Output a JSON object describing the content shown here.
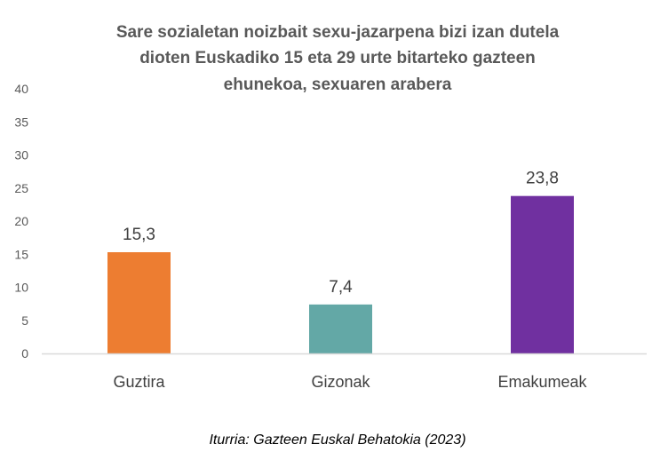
{
  "chart_data": {
    "type": "bar",
    "title_lines": [
      "Sare sozialetan noizbait sexu-jazarpena bizi izan dutela",
      "dioten Euskadiko 15 eta 29 urte bitarteko gazteen",
      "ehunekoa, sexuaren arabera"
    ],
    "categories": [
      "Guztira",
      "Gizonak",
      "Emakumeak"
    ],
    "values": [
      15.3,
      7.4,
      23.8
    ],
    "data_labels": [
      "15,3",
      "7,4",
      "23,8"
    ],
    "colors": [
      "#ED7D31",
      "#63A8A6",
      "#7030A0"
    ],
    "ylim": [
      0,
      40
    ],
    "yticks": [
      0,
      5,
      10,
      15,
      20,
      25,
      30,
      35,
      40
    ],
    "xlabel": "",
    "ylabel": "",
    "grid": false,
    "legend": "none",
    "source": "Iturria: Gazteen Euskal Behatokia (2023)"
  }
}
